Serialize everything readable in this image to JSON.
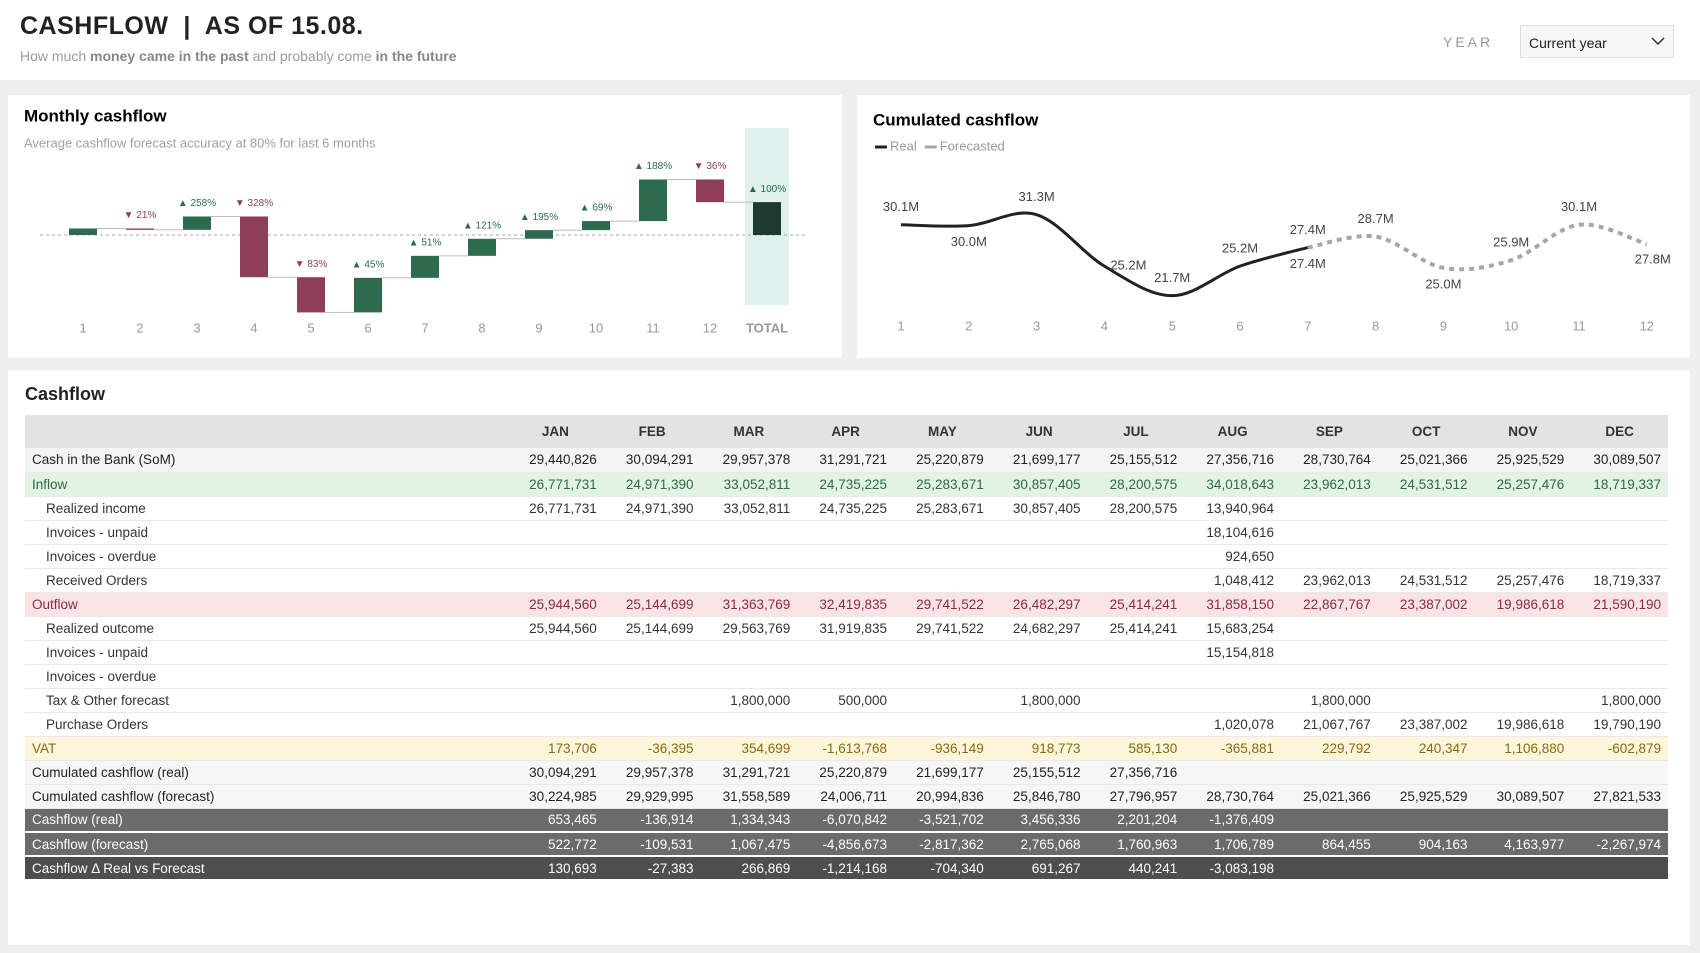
{
  "header": {
    "title": "CASHFLOW  |  AS OF 15.08.",
    "subtitle": [
      "How much ",
      "money came in the past",
      " and probably come ",
      "in the future"
    ]
  },
  "filters": {
    "label": "YEAR",
    "value": "Current year"
  },
  "chart_data": [
    {
      "type": "waterfall",
      "title": "Monthly cashflow",
      "subtitle": "Average cashflow forecast accuracy at 80% for last 6 months",
      "categories": [
        "1",
        "2",
        "3",
        "4",
        "5",
        "6",
        "7",
        "8",
        "9",
        "10",
        "11",
        "12",
        "TOTAL"
      ],
      "values": [
        653465,
        -136914,
        1334343,
        -6070842,
        -3521702,
        3456336,
        2201204,
        1706789,
        864455,
        904163,
        4163977,
        -2267974,
        3287300
      ],
      "change_labels": [
        null,
        "▼ 21%",
        "▲ 258%",
        "▼ 328%",
        "▼ 83%",
        "▲ 45%",
        "▲ 51%",
        "▲ 121%",
        "▲ 195%",
        "▲ 69%",
        "▲ 188%",
        "▼ 36%",
        "▲ 100%"
      ],
      "colors": {
        "up": "#2d6b4f",
        "down": "#8e3e55",
        "total": "#1c3a30"
      },
      "ylim": [
        -8000000,
        9500000
      ]
    },
    {
      "type": "line",
      "title": "Cumulated cashflow",
      "categories": [
        "1",
        "2",
        "3",
        "4",
        "5",
        "6",
        "7",
        "8",
        "9",
        "10",
        "11",
        "12"
      ],
      "series": [
        {
          "name": "Real",
          "color": "#222222",
          "dashed": false,
          "values": [
            30.1,
            30.0,
            31.3,
            25.2,
            21.7,
            25.2,
            27.4,
            null,
            null,
            null,
            null,
            null
          ],
          "value_labels": [
            "30.1M",
            "30.0M",
            "31.3M",
            "25.2M",
            "21.7M",
            "25.2M",
            "27.4M",
            null,
            null,
            null,
            null,
            null
          ]
        },
        {
          "name": "Forecasted",
          "color": "#a6a6a6",
          "dashed": true,
          "values": [
            null,
            null,
            null,
            null,
            null,
            null,
            27.4,
            28.7,
            25.0,
            25.9,
            30.1,
            27.8
          ],
          "value_labels": [
            null,
            null,
            null,
            null,
            null,
            null,
            "27.4M",
            "28.7M",
            "25.0M",
            "25.9M",
            "30.1M",
            "27.8M"
          ]
        }
      ],
      "ylim": [
        20,
        36
      ]
    }
  ],
  "table": {
    "title": "Cashflow",
    "columns": [
      "JAN",
      "FEB",
      "MAR",
      "APR",
      "MAY",
      "JUN",
      "JUL",
      "AUG",
      "SEP",
      "OCT",
      "NOV",
      "DEC"
    ],
    "rows": [
      {
        "label": "Cash in the Bank (SoM)",
        "cells": [
          "29,440,826",
          "30,094,291",
          "29,957,378",
          "31,291,721",
          "25,220,879",
          "21,699,177",
          "25,155,512",
          "27,356,716",
          "28,730,764",
          "25,021,366",
          "25,925,529",
          "30,089,507"
        ]
      },
      {
        "label": "Inflow",
        "cells": [
          "26,771,731",
          "24,971,390",
          "33,052,811",
          "24,735,225",
          "25,283,671",
          "30,857,405",
          "28,200,575",
          "34,018,643",
          "23,962,013",
          "24,531,512",
          "25,257,476",
          "18,719,337"
        ]
      },
      {
        "label": "Realized income",
        "cells": [
          "26,771,731",
          "24,971,390",
          "33,052,811",
          "24,735,225",
          "25,283,671",
          "30,857,405",
          "28,200,575",
          "13,940,964",
          null,
          null,
          null,
          null
        ]
      },
      {
        "label": "Invoices - unpaid",
        "cells": [
          null,
          null,
          null,
          null,
          null,
          null,
          null,
          "18,104,616",
          null,
          null,
          null,
          null
        ]
      },
      {
        "label": "Invoices - overdue",
        "cells": [
          null,
          null,
          null,
          null,
          null,
          null,
          null,
          "924,650",
          null,
          null,
          null,
          null
        ]
      },
      {
        "label": "Received Orders",
        "cells": [
          null,
          null,
          null,
          null,
          null,
          null,
          null,
          "1,048,412",
          "23,962,013",
          "24,531,512",
          "25,257,476",
          "18,719,337"
        ]
      },
      {
        "label": "Outflow",
        "cells": [
          "25,944,560",
          "25,144,699",
          "31,363,769",
          "32,419,835",
          "29,741,522",
          "26,482,297",
          "25,414,241",
          "31,858,150",
          "22,867,767",
          "23,387,002",
          "19,986,618",
          "21,590,190"
        ]
      },
      {
        "label": "Realized outcome",
        "cells": [
          "25,944,560",
          "25,144,699",
          "29,563,769",
          "31,919,835",
          "29,741,522",
          "24,682,297",
          "25,414,241",
          "15,683,254",
          null,
          null,
          null,
          null
        ]
      },
      {
        "label": "Invoices - unpaid",
        "cells": [
          null,
          null,
          null,
          null,
          null,
          null,
          null,
          "15,154,818",
          null,
          null,
          null,
          null
        ]
      },
      {
        "label": "Invoices - overdue",
        "cells": [
          null,
          null,
          null,
          null,
          null,
          null,
          null,
          null,
          null,
          null,
          null,
          null
        ]
      },
      {
        "label": "Tax & Other forecast",
        "cells": [
          null,
          null,
          "1,800,000",
          "500,000",
          null,
          "1,800,000",
          null,
          null,
          "1,800,000",
          null,
          null,
          "1,800,000"
        ]
      },
      {
        "label": "Purchase Orders",
        "cells": [
          null,
          null,
          null,
          null,
          null,
          null,
          null,
          "1,020,078",
          "21,067,767",
          "23,387,002",
          "19,986,618",
          "19,790,190"
        ]
      },
      {
        "label": "VAT",
        "cells": [
          "173,706",
          "-36,395",
          "354,699",
          "-1,613,768",
          "-936,149",
          "918,773",
          "585,130",
          "-365,881",
          "229,792",
          "240,347",
          "1,106,880",
          "-602,879"
        ]
      },
      {
        "label": "Cumulated cashflow (real)",
        "cells": [
          "30,094,291",
          "29,957,378",
          "31,291,721",
          "25,220,879",
          "21,699,177",
          "25,155,512",
          "27,356,716",
          null,
          null,
          null,
          null,
          null
        ]
      },
      {
        "label": "Cumulated cashflow (forecast)",
        "cells": [
          "30,224,985",
          "29,929,995",
          "31,558,589",
          "24,006,711",
          "20,994,836",
          "25,846,780",
          "27,796,957",
          "28,730,764",
          "25,021,366",
          "25,925,529",
          "30,089,507",
          "27,821,533"
        ]
      },
      {
        "label": "Cashflow (real)",
        "cells": [
          "653,465",
          "-136,914",
          "1,334,343",
          "-6,070,842",
          "-3,521,702",
          "3,456,336",
          "2,201,204",
          "-1,376,409",
          null,
          null,
          null,
          null
        ]
      },
      {
        "label": "Cashflow (forecast)",
        "cells": [
          "522,772",
          "-109,531",
          "1,067,475",
          "-4,856,673",
          "-2,817,362",
          "2,765,068",
          "1,760,963",
          "1,706,789",
          "864,455",
          "904,163",
          "4,163,977",
          "-2,267,974"
        ]
      },
      {
        "label": "Cashflow Δ Real vs Forecast",
        "cells": [
          "130,693",
          "-27,383",
          "266,869",
          "-1,214,168",
          "-704,340",
          "691,267",
          "440,241",
          "-3,083,198",
          null,
          null,
          null,
          null
        ]
      }
    ]
  }
}
